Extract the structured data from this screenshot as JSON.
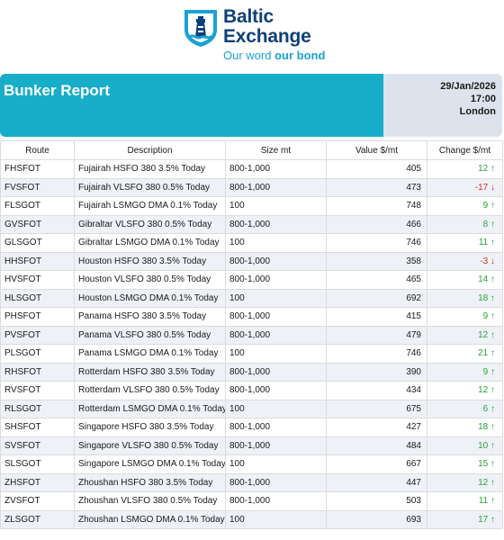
{
  "brand": {
    "name_line1": "Baltic",
    "name_line2": "Exchange",
    "tagline_regular": "Our word ",
    "tagline_bold": "our bond",
    "primary_color": "#0e3f79",
    "accent_color": "#1aa2d6"
  },
  "report": {
    "title": "Bunker Report",
    "date": "29/Jan/2026",
    "time": "17:00",
    "location": "London",
    "header_color": "#18adc8"
  },
  "table": {
    "headers": {
      "route": "Route",
      "description": "Description",
      "size": "Size mt",
      "value": "Value $/mt",
      "change": "Change $/mt"
    },
    "rows": [
      {
        "route": "FHSFOT",
        "description": "Fujairah HSFO 380 3.5% Today",
        "size": "800-1,000",
        "value": "405",
        "change": "12",
        "dir": "up",
        "arrow": "↑"
      },
      {
        "route": "FVSFOT",
        "description": "Fujairah VLSFO 380 0.5% Today",
        "size": "800-1,000",
        "value": "473",
        "change": "-17",
        "dir": "down",
        "arrow": "↓"
      },
      {
        "route": "FLSGOT",
        "description": "Fujairah LSMGO DMA 0.1% Today",
        "size": "100",
        "value": "748",
        "change": "9",
        "dir": "up",
        "arrow": "↑"
      },
      {
        "route": "GVSFOT",
        "description": "Gibraltar VLSFO 380 0.5% Today",
        "size": "800-1,000",
        "value": "466",
        "change": "8",
        "dir": "up",
        "arrow": "↑"
      },
      {
        "route": "GLSGOT",
        "description": "Gibraltar LSMGO DMA 0.1% Today",
        "size": "100",
        "value": "746",
        "change": "11",
        "dir": "up",
        "arrow": "↑"
      },
      {
        "route": "HHSFOT",
        "description": "Houston HSFO 380 3.5% Today",
        "size": "800-1,000",
        "value": "358",
        "change": "-3",
        "dir": "down",
        "arrow": "↓"
      },
      {
        "route": "HVSFOT",
        "description": "Houston VLSFO 380 0.5% Today",
        "size": "800-1,000",
        "value": "465",
        "change": "14",
        "dir": "up",
        "arrow": "↑"
      },
      {
        "route": "HLSGOT",
        "description": "Houston LSMGO DMA 0.1% Today",
        "size": "100",
        "value": "692",
        "change": "18",
        "dir": "up",
        "arrow": "↑"
      },
      {
        "route": "PHSFOT",
        "description": "Panama HSFO 380 3.5% Today",
        "size": "800-1,000",
        "value": "415",
        "change": "9",
        "dir": "up",
        "arrow": "↑"
      },
      {
        "route": "PVSFOT",
        "description": "Panama VLSFO 380 0.5% Today",
        "size": "800-1,000",
        "value": "479",
        "change": "12",
        "dir": "up",
        "arrow": "↑"
      },
      {
        "route": "PLSGOT",
        "description": "Panama LSMGO DMA 0.1% Today",
        "size": "100",
        "value": "746",
        "change": "21",
        "dir": "up",
        "arrow": "↑"
      },
      {
        "route": "RHSFOT",
        "description": "Rotterdam HSFO 380 3.5% Today",
        "size": "800-1,000",
        "value": "390",
        "change": "9",
        "dir": "up",
        "arrow": "↑"
      },
      {
        "route": "RVSFOT",
        "description": "Rotterdam VLSFO 380 0.5% Today",
        "size": "800-1,000",
        "value": "434",
        "change": "12",
        "dir": "up",
        "arrow": "↑"
      },
      {
        "route": "RLSGOT",
        "description": "Rotterdam LSMGO DMA 0.1% Today",
        "size": "100",
        "value": "675",
        "change": "6",
        "dir": "up",
        "arrow": "↑"
      },
      {
        "route": "SHSFOT",
        "description": "Singapore HSFO 380 3.5% Today",
        "size": "800-1,000",
        "value": "427",
        "change": "18",
        "dir": "up",
        "arrow": "↑"
      },
      {
        "route": "SVSFOT",
        "description": "Singapore VLSFO 380 0.5% Today",
        "size": "800-1,000",
        "value": "484",
        "change": "10",
        "dir": "up",
        "arrow": "↑"
      },
      {
        "route": "SLSGOT",
        "description": "Singapore LSMGO DMA 0.1% Today",
        "size": "100",
        "value": "667",
        "change": "15",
        "dir": "up",
        "arrow": "↑"
      },
      {
        "route": "ZHSFOT",
        "description": "Zhoushan HSFO 380 3.5% Today",
        "size": "800-1,000",
        "value": "447",
        "change": "12",
        "dir": "up",
        "arrow": "↑"
      },
      {
        "route": "ZVSFOT",
        "description": "Zhoushan VLSFO 380 0.5% Today",
        "size": "800-1,000",
        "value": "503",
        "change": "11",
        "dir": "up",
        "arrow": "↑"
      },
      {
        "route": "ZLSGOT",
        "description": "Zhoushan LSMGO DMA 0.1% Today",
        "size": "100",
        "value": "693",
        "change": "17",
        "dir": "up",
        "arrow": "↑"
      }
    ]
  }
}
